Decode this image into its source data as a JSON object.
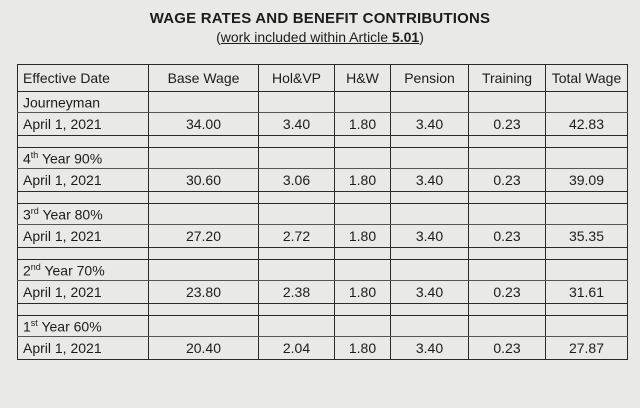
{
  "title": "WAGE RATES AND BENEFIT CONTRIBUTIONS",
  "subtitle": {
    "open": "(",
    "text": "work included within Article ",
    "article": "5.01",
    "close": ")"
  },
  "columns": [
    "Effective Date",
    "Base Wage",
    "Hol&VP",
    "H&W",
    "Pension",
    "Training",
    "Total Wage"
  ],
  "groups": [
    {
      "label": "Journeyman",
      "ord": "",
      "suffix": "",
      "row": {
        "date": "April 1, 2021",
        "base_wage": "34.00",
        "hol_vp": "3.40",
        "hw": "1.80",
        "pension": "3.40",
        "training": "0.23",
        "total_wage": "42.83"
      }
    },
    {
      "label": "4",
      "ord": "th",
      "suffix": " Year 90%",
      "row": {
        "date": "April 1, 2021",
        "base_wage": "30.60",
        "hol_vp": "3.06",
        "hw": "1.80",
        "pension": "3.40",
        "training": "0.23",
        "total_wage": "39.09"
      }
    },
    {
      "label": "3",
      "ord": "rd",
      "suffix": " Year 80%",
      "row": {
        "date": "April 1, 2021",
        "base_wage": "27.20",
        "hol_vp": "2.72",
        "hw": "1.80",
        "pension": "3.40",
        "training": "0.23",
        "total_wage": "35.35"
      }
    },
    {
      "label": "2",
      "ord": "nd",
      "suffix": " Year 70%",
      "row": {
        "date": "April 1, 2021",
        "base_wage": "23.80",
        "hol_vp": "2.38",
        "hw": "1.80",
        "pension": "3.40",
        "training": "0.23",
        "total_wage": "31.61"
      }
    },
    {
      "label": "1",
      "ord": "st",
      "suffix": " Year 60%",
      "row": {
        "date": "April 1, 2021",
        "base_wage": "20.40",
        "hol_vp": "2.04",
        "hw": "1.80",
        "pension": "3.40",
        "training": "0.23",
        "total_wage": "27.87"
      }
    }
  ]
}
